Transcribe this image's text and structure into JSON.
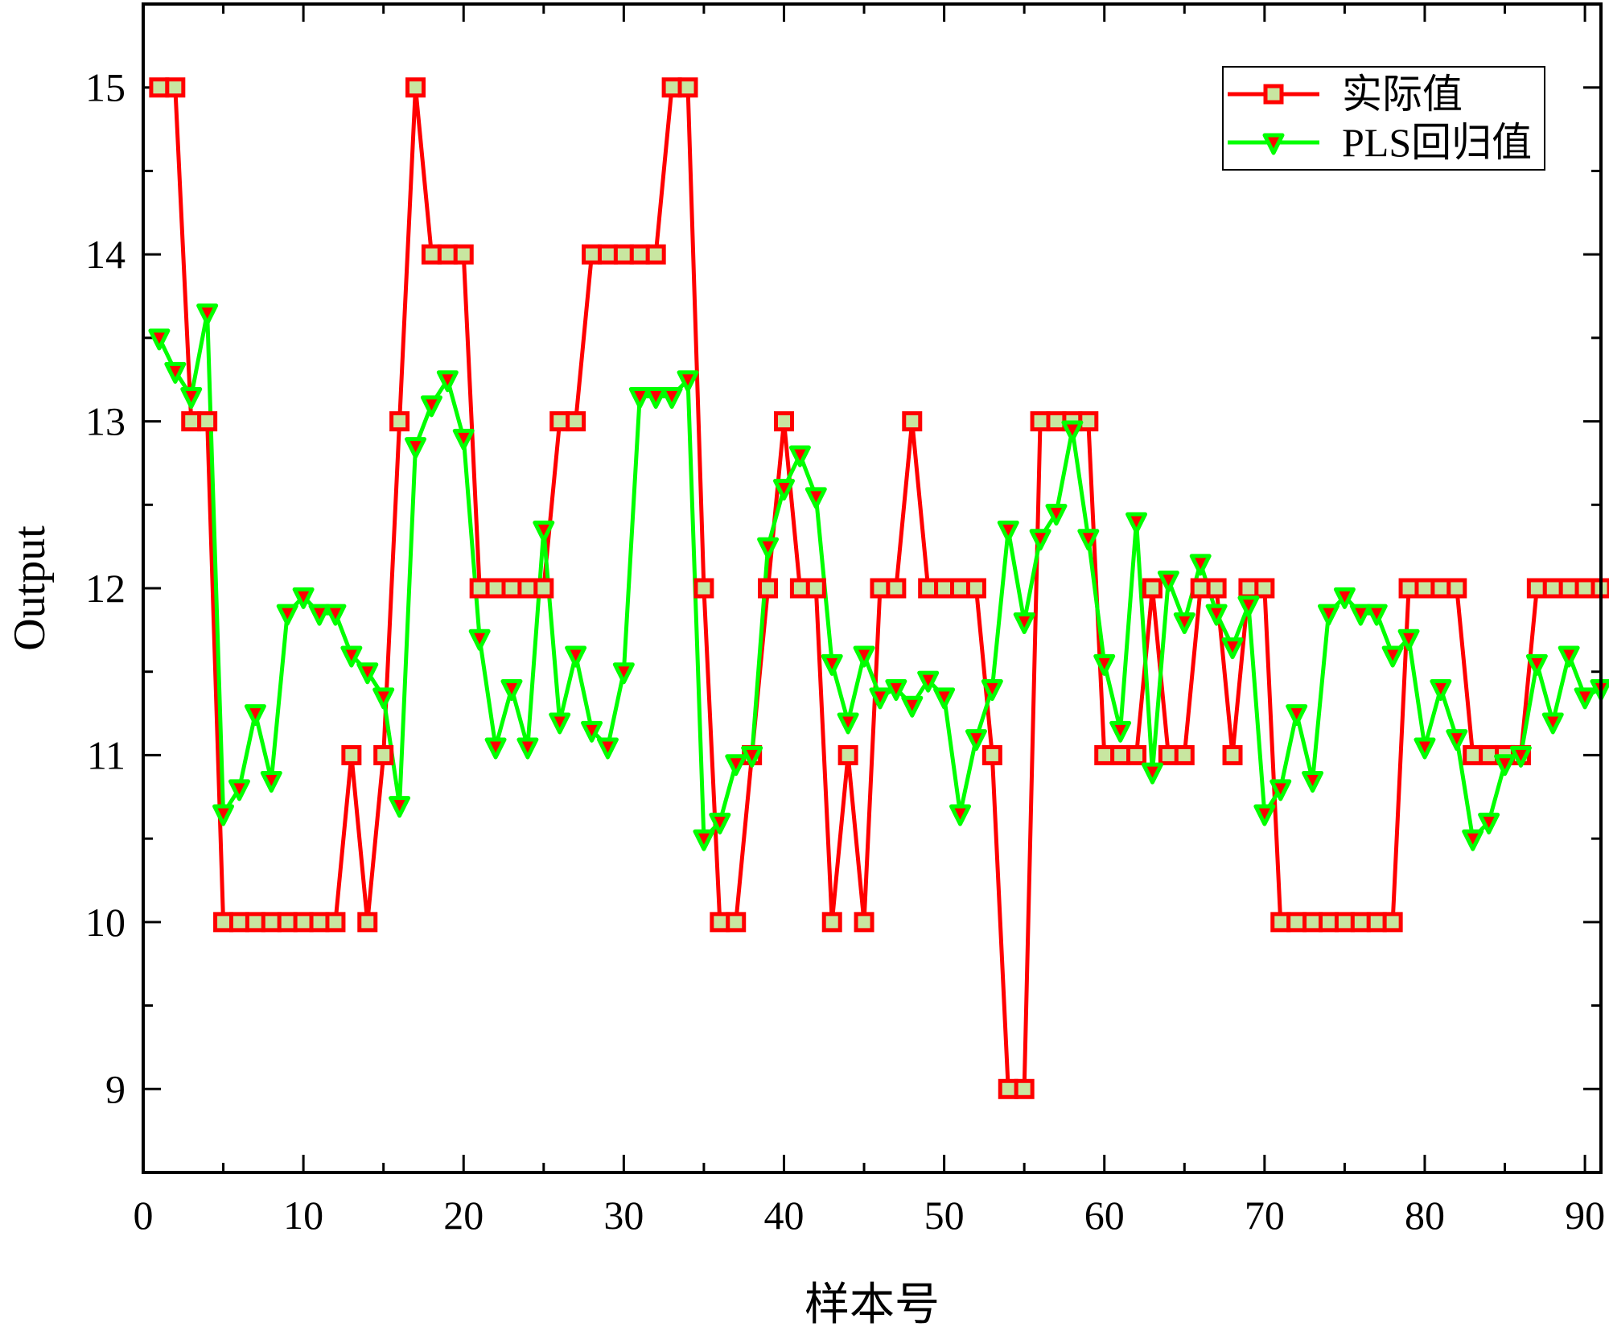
{
  "chart_data": {
    "type": "line",
    "xlabel": "样本号",
    "ylabel": "Output",
    "xlim": [
      0,
      91
    ],
    "ylim": [
      8.5,
      15.5
    ],
    "x_ticks": [
      0,
      10,
      20,
      30,
      40,
      50,
      60,
      70,
      80,
      90
    ],
    "y_ticks": [
      9,
      10,
      11,
      12,
      13,
      14,
      15
    ],
    "grid": false,
    "legend": "top-right",
    "x": [
      1,
      2,
      3,
      4,
      5,
      6,
      7,
      8,
      9,
      10,
      11,
      12,
      13,
      14,
      15,
      16,
      17,
      18,
      19,
      20,
      21,
      22,
      23,
      24,
      25,
      26,
      27,
      28,
      29,
      30,
      31,
      32,
      33,
      34,
      35,
      36,
      37,
      38,
      39,
      40,
      41,
      42,
      43,
      44,
      45,
      46,
      47,
      48,
      49,
      50,
      51,
      52,
      53,
      54,
      55,
      56,
      57,
      58,
      59,
      60,
      61,
      62,
      63,
      64,
      65,
      66,
      67,
      68,
      69,
      70,
      71,
      72,
      73,
      74,
      75,
      76,
      77,
      78,
      79,
      80,
      81,
      82,
      83,
      84,
      85,
      86,
      87,
      88,
      89,
      90,
      91
    ],
    "series": [
      {
        "name": "实际值",
        "color": "#ff0000",
        "marker": "square",
        "marker_fill": "#c8e6a0",
        "values": [
          15,
          15,
          13,
          13,
          10,
          10,
          10,
          10,
          10,
          10,
          10,
          10,
          11,
          10,
          11,
          13,
          15,
          14,
          14,
          14,
          12,
          12,
          12,
          12,
          12,
          13,
          13,
          14,
          14,
          14,
          14,
          14,
          15,
          15,
          12,
          10,
          10,
          11,
          12,
          13,
          12,
          12,
          10,
          11,
          10,
          12,
          12,
          13,
          12,
          12,
          12,
          12,
          11,
          9,
          9,
          13,
          13,
          13,
          13,
          11,
          11,
          11,
          12,
          11,
          11,
          12,
          12,
          11,
          12,
          12,
          10,
          10,
          10,
          10,
          10,
          10,
          10,
          10,
          12,
          12,
          12,
          12,
          11,
          11,
          11,
          11,
          12,
          12,
          12,
          12,
          12
        ]
      },
      {
        "name": "PLS回归值",
        "color": "#00ff00",
        "marker": "triangle-down",
        "marker_fill": "#ff0000",
        "values": [
          13.5,
          13.3,
          13.15,
          13.65,
          10.65,
          10.8,
          11.25,
          10.85,
          11.85,
          11.95,
          11.85,
          11.85,
          11.6,
          11.5,
          11.35,
          10.7,
          12.85,
          13.1,
          13.25,
          12.9,
          11.7,
          11.05,
          11.4,
          11.05,
          12.35,
          11.2,
          11.6,
          11.15,
          11.05,
          11.5,
          13.15,
          13.15,
          13.15,
          13.25,
          10.5,
          10.6,
          10.95,
          11.0,
          12.25,
          12.6,
          12.8,
          12.55,
          11.55,
          11.2,
          11.6,
          11.35,
          11.4,
          11.3,
          11.45,
          11.35,
          10.65,
          11.1,
          11.4,
          12.35,
          11.8,
          12.3,
          12.45,
          12.95,
          12.3,
          11.55,
          11.15,
          12.4,
          10.9,
          12.05,
          11.8,
          12.15,
          11.85,
          11.65,
          11.9,
          10.65,
          10.8,
          11.25,
          10.85,
          11.85,
          11.95,
          11.85,
          11.85,
          11.6,
          11.7,
          11.05,
          11.4,
          11.1,
          10.5,
          10.6,
          10.95,
          11.0,
          11.55,
          11.2,
          11.6,
          11.35,
          11.4
        ]
      }
    ]
  }
}
